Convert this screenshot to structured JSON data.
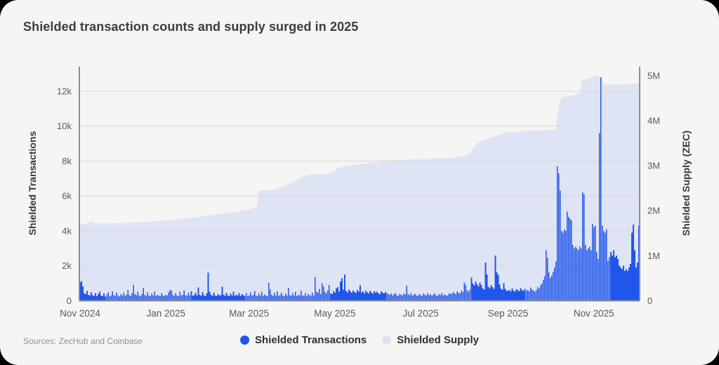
{
  "title": "Shielded transaction counts and supply surged in 2025",
  "footer": {
    "sources": "Sources: ZecHub and Coinbase"
  },
  "legend": {
    "items": [
      {
        "label": "Shielded Transactions",
        "color": "#2156ec"
      },
      {
        "label": "Shielded Supply",
        "color": "#dee4f4"
      }
    ]
  },
  "colors": {
    "page": "#000000",
    "background": "#f5f5f3",
    "bar": "#2156ec",
    "area": "#dee4f4",
    "grid": "#d7d7d5",
    "axis": "#8d8d8d",
    "text_primary": "#3c3c3c",
    "text_secondary": "#5a5a5a",
    "text_muted": "#8f8f8f"
  },
  "chart_data": {
    "type": "bar+area",
    "title": "Shielded transaction counts and supply surged in 2025",
    "total_days": 398,
    "x_ticks": [
      {
        "day": 0,
        "label": "Nov 2024"
      },
      {
        "day": 61,
        "label": "Jan 2025"
      },
      {
        "day": 120,
        "label": "Mar 2025"
      },
      {
        "day": 181,
        "label": "May 2025"
      },
      {
        "day": 242,
        "label": "Jul 2025"
      },
      {
        "day": 304,
        "label": "Sep 2025"
      },
      {
        "day": 365,
        "label": "Nov 2025"
      }
    ],
    "left_axis": {
      "title": "Shielded Transactions",
      "tick_values": [
        0,
        2000,
        4000,
        6000,
        8000,
        10000,
        12000
      ],
      "tick_labels": [
        "0",
        "2k",
        "4k",
        "6k",
        "8k",
        "10k",
        "12k"
      ],
      "max": 13400
    },
    "right_axis": {
      "title": "Shielded Supply (ZEC)",
      "tick_values": [
        0,
        1000000,
        2000000,
        3000000,
        4000000,
        5000000
      ],
      "tick_labels": [
        "0",
        "1M",
        "2M",
        "3M",
        "4M",
        "5M"
      ],
      "max": 5200000
    },
    "series": [
      {
        "name": "Shielded Transactions",
        "type": "bar",
        "axis": "left",
        "color": "#2156ec",
        "daily_values": [
          1050,
          1130,
          820,
          420,
          380,
          560,
          350,
          300,
          480,
          320,
          290,
          450,
          260,
          380,
          520,
          300,
          270,
          430,
          250,
          360,
          480,
          270,
          310,
          550,
          330,
          280,
          460,
          300,
          240,
          380,
          310,
          470,
          280,
          350,
          600,
          320,
          280,
          450,
          900,
          380,
          330,
          520,
          300,
          270,
          410,
          750,
          340,
          290,
          480,
          310,
          260,
          430,
          300,
          520,
          280,
          350,
          300,
          260,
          440,
          310,
          280,
          350,
          300,
          480,
          620,
          580,
          340,
          290,
          450,
          310,
          270,
          520,
          300,
          340,
          610,
          330,
          280,
          460,
          310,
          550,
          290,
          330,
          470,
          300,
          760,
          340,
          290,
          510,
          320,
          270,
          430,
          1600,
          520,
          340,
          290,
          460,
          310,
          270,
          380,
          300,
          330,
          800,
          350,
          290,
          470,
          310,
          260,
          420,
          300,
          530,
          280,
          340,
          300,
          450,
          270,
          380,
          320,
          290,
          440,
          260,
          310,
          480,
          290,
          350,
          560,
          300,
          270,
          430,
          310,
          520,
          280,
          360,
          300,
          270,
          1020,
          650,
          340,
          290,
          460,
          310,
          550,
          280,
          330,
          470,
          300,
          260,
          420,
          310,
          750,
          330,
          280,
          450,
          300,
          520,
          270,
          340,
          300,
          590,
          310,
          280,
          440,
          260,
          380,
          320,
          290,
          460,
          300,
          1360,
          520,
          460,
          680,
          390,
          1000,
          800,
          520,
          430,
          600,
          900,
          430,
          380,
          560,
          470,
          700,
          780,
          520,
          1110,
          1290,
          640,
          1500,
          560,
          480,
          650,
          540,
          460,
          590,
          510,
          440,
          620,
          530,
          880,
          470,
          540,
          420,
          580,
          490,
          430,
          560,
          480,
          410,
          550,
          460,
          520,
          430,
          390,
          540,
          460,
          420,
          500,
          440,
          380,
          350,
          420,
          300,
          380,
          440,
          320,
          280,
          400,
          340,
          300,
          420,
          360,
          860,
          380,
          320,
          440,
          300,
          350,
          400,
          310,
          280,
          380,
          330,
          290,
          420,
          350,
          300,
          440,
          320,
          380,
          300,
          350,
          420,
          310,
          280,
          390,
          330,
          440,
          300,
          360,
          320,
          280,
          400,
          420,
          380,
          500,
          440,
          390,
          550,
          470,
          420,
          580,
          500,
          1050,
          900,
          600,
          520,
          640,
          1330,
          980,
          880,
          1100,
          950,
          820,
          1050,
          900,
          700,
          640,
          2200,
          1500,
          800,
          720,
          900,
          780,
          680,
          2600,
          1620,
          1480,
          950,
          700,
          620,
          1000,
          680,
          580,
          560,
          620,
          540,
          700,
          580,
          520,
          660,
          600,
          540,
          720,
          620,
          560,
          680,
          580,
          620,
          540,
          760,
          640,
          580,
          520,
          600,
          780,
          700,
          880,
          980,
          1200,
          1400,
          2900,
          2450,
          1620,
          1300,
          1450,
          1650,
          1900,
          2250,
          7700,
          7300,
          6300,
          4000,
          3900,
          4100,
          4000,
          5100,
          4800,
          4700,
          4600,
          3200,
          3000,
          3100,
          3000,
          2900,
          3100,
          3000,
          6200,
          6100,
          3200,
          2900,
          3000,
          3100,
          2900,
          4400,
          4200,
          4300,
          2800,
          2400,
          9600,
          12800,
          4300,
          4000,
          3900,
          4100,
          2300,
          2500,
          2800,
          2600,
          2900,
          2500,
          2600,
          2400,
          2000,
          1900,
          1800,
          2000,
          1700,
          1800,
          1700,
          1900,
          2100,
          3900,
          4350,
          2900,
          1900,
          2200,
          4300
        ]
      },
      {
        "name": "Shielded Supply",
        "type": "area",
        "axis": "right",
        "color": "#dee4f4",
        "points_day_zec": [
          [
            0,
            1700000
          ],
          [
            5,
            1720000
          ],
          [
            8,
            1770000
          ],
          [
            10,
            1720000
          ],
          [
            20,
            1720000
          ],
          [
            40,
            1740000
          ],
          [
            61,
            1780000
          ],
          [
            80,
            1840000
          ],
          [
            92,
            1900000
          ],
          [
            107,
            1960000
          ],
          [
            118,
            2020000
          ],
          [
            124,
            2060000
          ],
          [
            126,
            2100000
          ],
          [
            127,
            2450000
          ],
          [
            138,
            2470000
          ],
          [
            146,
            2550000
          ],
          [
            152,
            2640000
          ],
          [
            158,
            2760000
          ],
          [
            163,
            2800000
          ],
          [
            176,
            2820000
          ],
          [
            180,
            2860000
          ],
          [
            183,
            2950000
          ],
          [
            190,
            3000000
          ],
          [
            205,
            3060000
          ],
          [
            221,
            3120000
          ],
          [
            245,
            3150000
          ],
          [
            266,
            3180000
          ],
          [
            276,
            3240000
          ],
          [
            279,
            3380000
          ],
          [
            283,
            3520000
          ],
          [
            290,
            3600000
          ],
          [
            297,
            3680000
          ],
          [
            303,
            3740000
          ],
          [
            318,
            3780000
          ],
          [
            336,
            3800000
          ],
          [
            338,
            3820000
          ],
          [
            339,
            4100000
          ],
          [
            341,
            4450000
          ],
          [
            343,
            4520000
          ],
          [
            350,
            4560000
          ],
          [
            355,
            4620000
          ],
          [
            357,
            4900000
          ],
          [
            360,
            4930000
          ],
          [
            364,
            4960000
          ],
          [
            368,
            5010000
          ],
          [
            370,
            4930000
          ],
          [
            372,
            4810000
          ],
          [
            382,
            4800000
          ],
          [
            392,
            4820000
          ],
          [
            397,
            4840000
          ]
        ]
      }
    ]
  }
}
